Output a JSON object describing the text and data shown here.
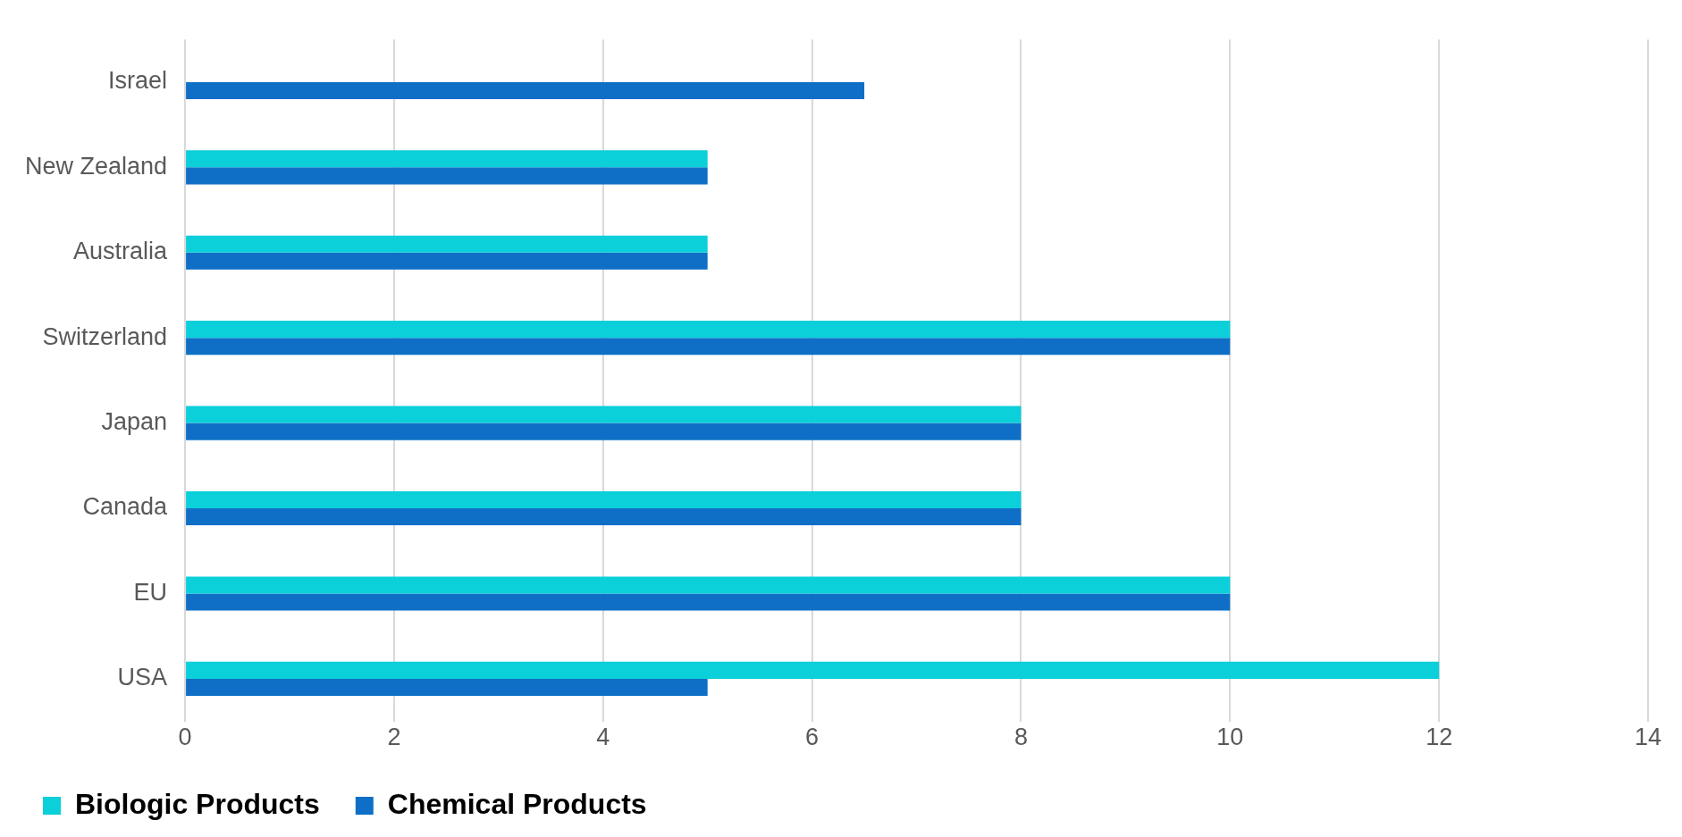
{
  "chart_data": {
    "type": "bar",
    "orientation": "horizontal",
    "categories": [
      "Israel",
      "New Zealand",
      "Australia",
      "Switzerland",
      "Japan",
      "Canada",
      "EU",
      "USA"
    ],
    "series": [
      {
        "name": "Biologic Products",
        "color": "#0bcfd9",
        "values": [
          null,
          5,
          5,
          10,
          8,
          8,
          10,
          12
        ]
      },
      {
        "name": "Chemical Products",
        "color": "#0f6fc6",
        "values": [
          6.5,
          5,
          5,
          10,
          8,
          8,
          10,
          5
        ]
      }
    ],
    "xlim": [
      0,
      14
    ],
    "xticks": [
      0,
      2,
      4,
      6,
      8,
      10,
      12,
      14
    ],
    "grid": "x",
    "legend": "bottom"
  }
}
